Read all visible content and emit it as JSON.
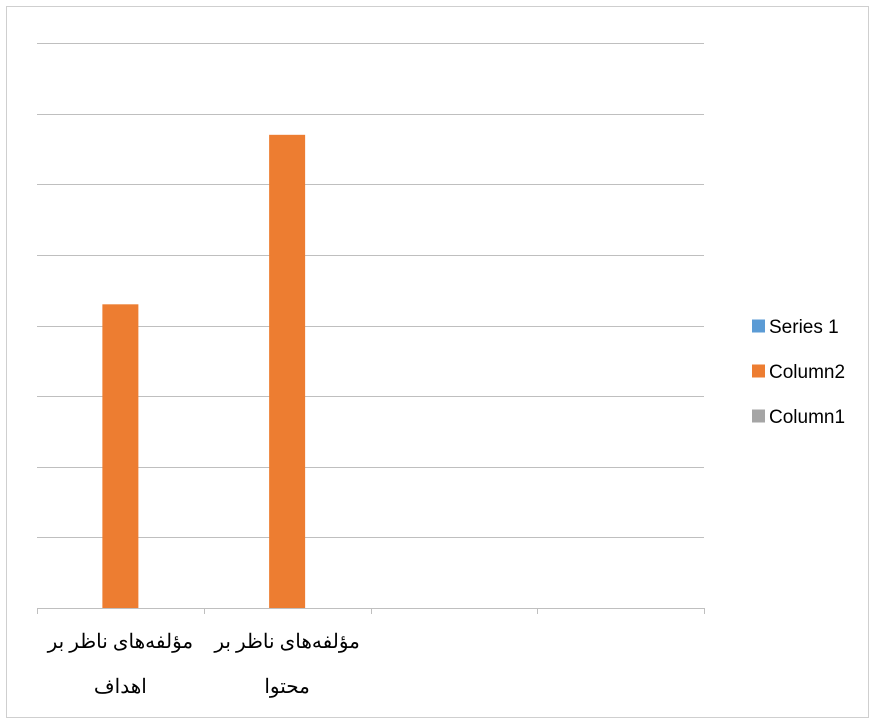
{
  "chart_data": {
    "type": "bar",
    "categories": [
      [
        "مؤلفه‌های ناظر بر",
        "اهداف"
      ],
      [
        "مؤلفه‌های ناظر بر",
        "محتوا"
      ],
      [
        "",
        ""
      ],
      [
        "",
        ""
      ]
    ],
    "series": [
      {
        "name": "Series 1",
        "values": [
          0,
          0,
          0,
          0
        ],
        "color": "#5b9bd5"
      },
      {
        "name": "Column2",
        "values": [
          4.3,
          6.7,
          0,
          0
        ],
        "color": "#ed7d31"
      },
      {
        "name": "Column1",
        "values": [
          0,
          0,
          0,
          0
        ],
        "color": "#a5a5a5"
      }
    ],
    "ylim": [
      0,
      8
    ],
    "gridlines": true,
    "legend_position": "right",
    "title": "",
    "xlabel": "",
    "ylabel": ""
  }
}
